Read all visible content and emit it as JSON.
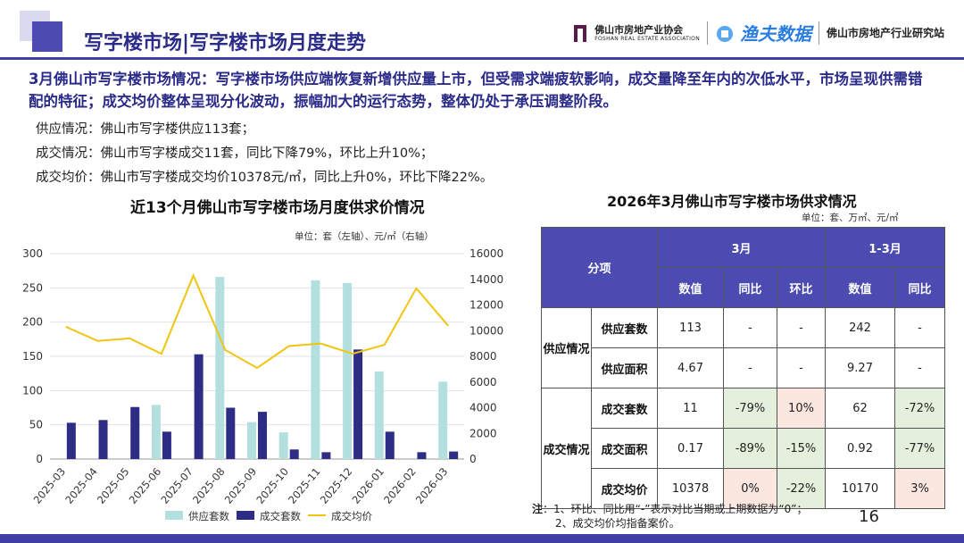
{
  "header": {
    "title": "写字楼市场|写字楼市场月度走势",
    "logo1_main": "佛山市房地产业协会",
    "logo1_sub": "FOSHAN REAL ESTATE ASSOCIATION",
    "logo2": "渔夫数据",
    "logo3": "佛山市房地产行业研究站"
  },
  "summary": "3月佛山市写字楼市场情况：写字楼市场供应端恢复新增供应量上市，但受需求端疲软影响，成交量降至年内的次低水平，市场呈现供需错配的特征；成交均价整体呈现分化波动，振幅加大的运行态势，整体仍处于承压调整阶段。",
  "bullets": [
    "供应情况：佛山市写字楼供应113套；",
    "成交情况：佛山市写字楼成交11套，同比下降79%，环比上升10%；",
    "成交均价：佛山市写字楼成交均价10378元/㎡，同比上升0%，环比下降22%。"
  ],
  "chart_data": {
    "type": "bar",
    "title": "近13个月佛山市写字楼市场月度供求价情况",
    "unit_label": "单位：套（左轴）、元/㎡（右轴）",
    "categories": [
      "2025-03",
      "2025-04",
      "2025-05",
      "2025-06",
      "2025-07",
      "2025-08",
      "2025-09",
      "2025-10",
      "2025-11",
      "2025-12",
      "2026-01",
      "2026-02",
      "2026-03"
    ],
    "series": [
      {
        "name": "供应套数",
        "type": "bar",
        "axis": "left",
        "color": "#b3e0df",
        "values": [
          0,
          0,
          0,
          79,
          0,
          266,
          54,
          39,
          261,
          257,
          128,
          0,
          113
        ]
      },
      {
        "name": "成交套数",
        "type": "bar",
        "axis": "left",
        "color": "#2d2d86",
        "values": [
          53,
          57,
          76,
          40,
          153,
          75,
          69,
          14,
          10,
          160,
          40,
          10,
          11
        ]
      },
      {
        "name": "成交均价",
        "type": "line",
        "axis": "right",
        "color": "#f1c40f",
        "values": [
          10300,
          9200,
          9400,
          8200,
          14300,
          8500,
          7100,
          8800,
          9000,
          8200,
          8900,
          13300,
          10378
        ]
      }
    ],
    "ylim_left": [
      0,
      300
    ],
    "yticks_left": [
      0,
      50,
      100,
      150,
      200,
      250,
      300
    ],
    "ylim_right": [
      0,
      16000
    ],
    "yticks_right": [
      0,
      2000,
      4000,
      6000,
      8000,
      10000,
      12000,
      14000,
      16000
    ],
    "legend": "bottom"
  },
  "table": {
    "title": "2026年3月佛山市写字楼市场供求情况",
    "unit": "单位：套、万㎡、元/㎡",
    "h_item": "分项",
    "h_march": "3月",
    "h_q1": "1-3月",
    "h_value": "数值",
    "h_yoy": "同比",
    "h_mom": "环比",
    "group_supply": "供应情况",
    "group_deal": "成交情况",
    "rows": [
      {
        "label": "供应套数",
        "v": "113",
        "yoy": "-",
        "mom": "-",
        "v2": "242",
        "yoy2": "-"
      },
      {
        "label": "供应面积",
        "v": "4.67",
        "yoy": "-",
        "mom": "-",
        "v2": "9.27",
        "yoy2": "-"
      },
      {
        "label": "成交套数",
        "v": "11",
        "yoy": "-79%",
        "mom": "10%",
        "v2": "62",
        "yoy2": "-72%"
      },
      {
        "label": "成交面积",
        "v": "0.17",
        "yoy": "-89%",
        "mom": "-15%",
        "v2": "0.92",
        "yoy2": "-77%"
      },
      {
        "label": "成交均价",
        "v": "10378",
        "yoy": "0%",
        "mom": "-22%",
        "v2": "10170",
        "yoy2": "3%"
      }
    ]
  },
  "note": {
    "prefix": "注",
    "line1": "：1、环比、同比用“-”表示对比当期或上期数据为“0”；",
    "line2": "2、成交均价均指备案价。"
  },
  "page_number": "16",
  "colors": {
    "accent": "#3f3fa6",
    "title": "#2b2b8a",
    "green_cell": "#e4f0dc",
    "pink_cell": "#fbe6e0"
  }
}
